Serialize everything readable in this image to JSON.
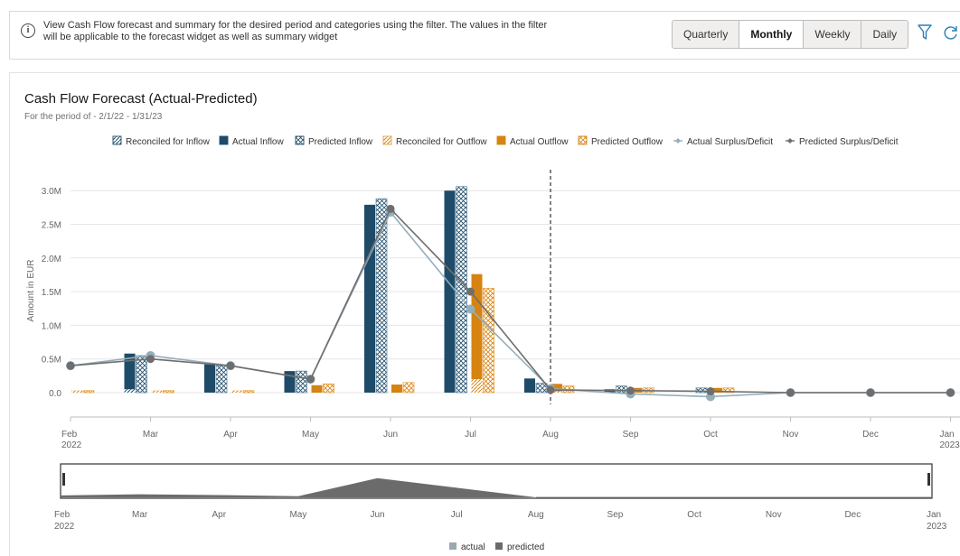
{
  "header": {
    "info_text": "View Cash Flow forecast and summary for the desired period and categories using the filter. The values in the filter will be applicable to the forecast widget as well as summary widget",
    "periods": [
      {
        "label": "Quarterly",
        "active": false
      },
      {
        "label": "Monthly",
        "active": true
      },
      {
        "label": "Weekly",
        "active": false
      },
      {
        "label": "Daily",
        "active": false
      }
    ],
    "icons": [
      "filter-icon",
      "refresh-icon"
    ]
  },
  "colors": {
    "inflow": "#1e4b68",
    "inflow_hatch": "#6a8ea8",
    "outflow": "#d68312",
    "outflow_hatch": "#e8a443",
    "actual_line": "#94aebc",
    "predicted_line": "#6e6e6e",
    "grid": "#e6e6e6"
  },
  "chart_data": {
    "type": "bar",
    "title": "Cash Flow Forecast (Actual-Predicted)",
    "subtitle": "For the period of - 2/1/22 - 1/31/23",
    "ylabel": "Amount in EUR",
    "ylim": [
      -0.3,
      3.3
    ],
    "yticks": [
      0,
      0.5,
      1.0,
      1.5,
      2.0,
      2.5,
      3.0
    ],
    "ytick_labels": [
      "0.0",
      "0.5M",
      "1.0M",
      "1.5M",
      "2.0M",
      "2.5M",
      "3.0M"
    ],
    "categories": [
      "Feb",
      "Mar",
      "Apr",
      "May",
      "Jun",
      "Jul",
      "Aug",
      "Sep",
      "Oct",
      "Nov",
      "Dec",
      "Jan"
    ],
    "category_year_labels": [
      "2022",
      "",
      "",
      "",
      "",
      "",
      "",
      "",
      "",
      "",
      "",
      "2023"
    ],
    "forecast_start_index": 6,
    "legend_position": "top",
    "series": [
      {
        "name": "Reconciled for Inflow",
        "kind": "bar",
        "values": [
          0,
          0.05,
          0,
          0,
          0,
          0,
          0,
          0,
          0,
          0,
          0,
          0
        ]
      },
      {
        "name": "Actual Inflow",
        "kind": "bar",
        "values": [
          0,
          0.58,
          0.42,
          0.32,
          2.79,
          3.0,
          0.21,
          0.05,
          0,
          0,
          0,
          0
        ]
      },
      {
        "name": "Predicted Inflow",
        "kind": "bar",
        "values": [
          0,
          0.55,
          0.4,
          0.32,
          2.88,
          3.06,
          0.14,
          0.1,
          0.07,
          0,
          0,
          0
        ]
      },
      {
        "name": "Reconciled for Outflow",
        "kind": "bar",
        "values": [
          0.03,
          0.03,
          0.03,
          0,
          0,
          0.2,
          0.02,
          0,
          0,
          0,
          0,
          0
        ]
      },
      {
        "name": "Actual Outflow",
        "kind": "bar",
        "values": [
          0.03,
          0.03,
          0.03,
          0.11,
          0.12,
          1.76,
          0.13,
          0.07,
          0.07,
          0,
          0,
          0
        ]
      },
      {
        "name": "Predicted Outflow",
        "kind": "bar",
        "values": [
          0.03,
          0.03,
          0.03,
          0.13,
          0.15,
          1.55,
          0.1,
          0.07,
          0.07,
          0,
          0,
          0
        ]
      },
      {
        "name": "Actual Surplus/Deficit",
        "kind": "line",
        "values": [
          0.4,
          0.55,
          0.4,
          0.2,
          2.68,
          1.24,
          0.06,
          -0.02,
          -0.06,
          0,
          0,
          0
        ]
      },
      {
        "name": "Predicted Surplus/Deficit",
        "kind": "line",
        "values": [
          0.4,
          0.5,
          0.4,
          0.2,
          2.73,
          1.5,
          0.04,
          0.03,
          0.02,
          0,
          0,
          0
        ]
      }
    ],
    "overview": {
      "legend": [
        "actual",
        "predicted"
      ],
      "values": [
        0.05,
        0.08,
        0.06,
        0.03,
        0.5,
        0.25,
        0,
        0,
        0,
        0,
        0,
        0
      ]
    }
  }
}
